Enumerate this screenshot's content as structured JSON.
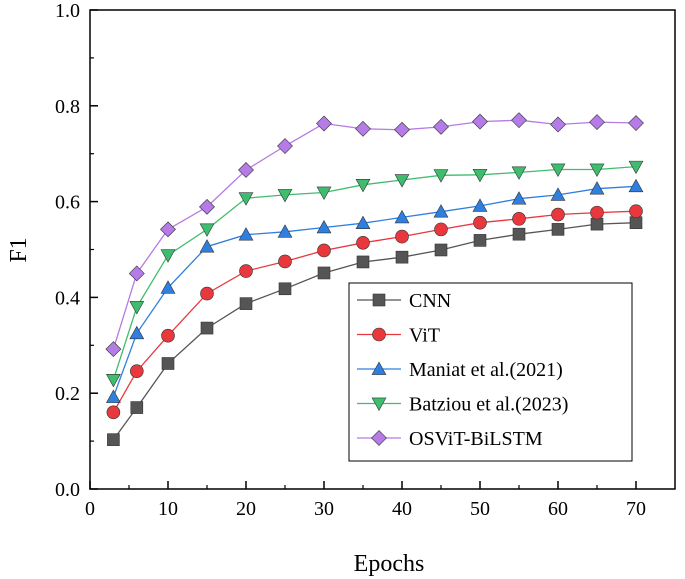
{
  "chart_data": {
    "type": "line",
    "title": "",
    "xlabel": "Epochs",
    "ylabel": "F1",
    "xlim": [
      0,
      75
    ],
    "ylim": [
      0.0,
      1.0
    ],
    "xticks": [
      0,
      10,
      20,
      30,
      40,
      50,
      60,
      70
    ],
    "xtick_labels": [
      "0",
      "10",
      "20",
      "30",
      "40",
      "50",
      "60",
      "70"
    ],
    "yticks": [
      0.0,
      0.2,
      0.4,
      0.6,
      0.8,
      1.0
    ],
    "ytick_labels": [
      "0.0",
      "0.2",
      "0.4",
      "0.6",
      "0.8",
      "1.0"
    ],
    "grid": false,
    "legend_position": "lower-right",
    "x": [
      3,
      6,
      10,
      15,
      20,
      25,
      30,
      35,
      40,
      45,
      50,
      55,
      60,
      65,
      70
    ],
    "series": [
      {
        "name": "CNN",
        "color": "#555555",
        "marker": "square",
        "values": [
          0.103,
          0.17,
          0.262,
          0.336,
          0.387,
          0.418,
          0.451,
          0.474,
          0.484,
          0.499,
          0.519,
          0.532,
          0.542,
          0.553,
          0.556
        ]
      },
      {
        "name": "ViT",
        "color": "#e8383d",
        "marker": "circle",
        "values": [
          0.16,
          0.246,
          0.32,
          0.408,
          0.455,
          0.475,
          0.498,
          0.514,
          0.527,
          0.542,
          0.556,
          0.564,
          0.573,
          0.577,
          0.58
        ]
      },
      {
        "name": "Maniat et al.(2021)",
        "color": "#2f7fe0",
        "marker": "triangle-up",
        "values": [
          0.192,
          0.325,
          0.42,
          0.506,
          0.531,
          0.537,
          0.546,
          0.555,
          0.567,
          0.579,
          0.591,
          0.606,
          0.614,
          0.627,
          0.632
        ]
      },
      {
        "name": "Batziou et al.(2023)",
        "color": "#3fbd6e",
        "marker": "triangle-down",
        "values": [
          0.228,
          0.38,
          0.488,
          0.542,
          0.607,
          0.614,
          0.619,
          0.635,
          0.645,
          0.655,
          0.656,
          0.661,
          0.667,
          0.667,
          0.673
        ]
      },
      {
        "name": "OSViT-BiLSTM",
        "color": "#b57be6",
        "marker": "diamond",
        "values": [
          0.292,
          0.45,
          0.542,
          0.589,
          0.666,
          0.716,
          0.763,
          0.752,
          0.75,
          0.756,
          0.767,
          0.77,
          0.761,
          0.766,
          0.764
        ]
      }
    ]
  }
}
